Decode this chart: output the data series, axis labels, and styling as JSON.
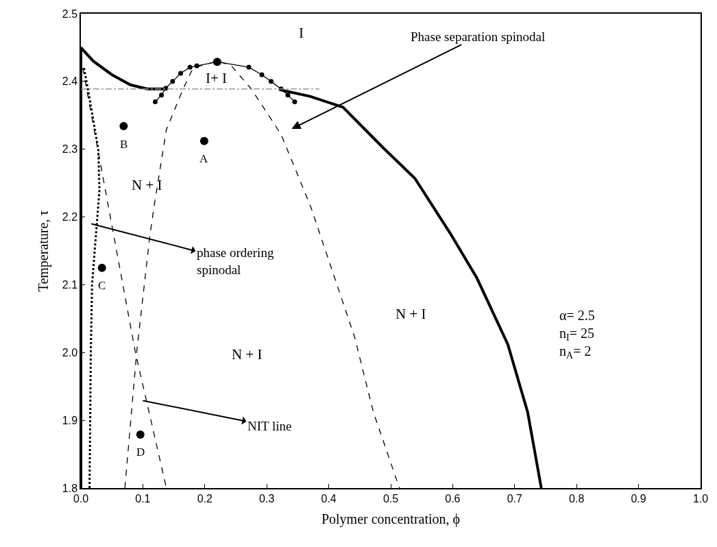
{
  "chart_data": {
    "type": "line",
    "xlabel": "Polymer concentration, ϕ",
    "ylabel": "Temperature, τ",
    "xlim": [
      0,
      1
    ],
    "ylim": [
      1.8,
      2.5
    ],
    "xticks": [
      {
        "value": 0,
        "label": "0.0"
      },
      0.1,
      0.2,
      0.3,
      0.4,
      0.5,
      0.6,
      0.7,
      0.8,
      0.9,
      {
        "value": 1,
        "label": "1.0"
      }
    ],
    "yticks": [
      1.8,
      1.9,
      {
        "value": 2,
        "label": "2.0"
      },
      2.1,
      2.2,
      2.3,
      2.4,
      2.5
    ],
    "grid": false,
    "series": [
      {
        "color": "#000000",
        "line_style": "solid",
        "marker": "none",
        "x": [
          0,
          0,
          0.02,
          0.05,
          0.08,
          0.107,
          0.138
        ],
        "values": [
          1.8,
          2.45,
          2.43,
          2.41,
          2.395,
          2.389,
          2.389
        ]
      },
      {
        "color": "#000000",
        "line_style": "solid",
        "marker": "none",
        "x": [
          0.325,
          0.37,
          0.423,
          0.488,
          0.539,
          0.596,
          0.639,
          0.689,
          0.721,
          0.743
        ],
        "values": [
          2.387,
          2.378,
          2.362,
          2.302,
          2.257,
          2.176,
          2.11,
          2.012,
          1.912,
          1.8
        ]
      },
      {
        "color": "#000000",
        "line_style": "dotted",
        "marker": "none",
        "x": [
          0.014,
          0.015,
          0.016,
          0.018,
          0.024,
          0.03,
          0.028,
          0.015,
          0.005
        ],
        "values": [
          1.8,
          1.9,
          2.0,
          2.1,
          2.17,
          2.24,
          2.3,
          2.37,
          2.42
        ]
      },
      {
        "color": "#000000",
        "line_style": "dashed",
        "marker": "none",
        "x": [
          0.003,
          0.088,
          0.138
        ],
        "values": [
          2.42,
          2.0,
          1.8
        ]
      },
      {
        "color": "#000000",
        "line_style": "dashed",
        "marker": "none",
        "x": [
          0.071,
          0.09,
          0.111,
          0.118,
          0.138,
          0.165,
          0.181,
          0.22,
          0.242,
          0.275,
          0.323,
          0.371,
          0.442,
          0.472,
          0.514
        ],
        "values": [
          1.8,
          2.0,
          2.17,
          2.215,
          2.329,
          2.389,
          2.42,
          2.43,
          2.424,
          2.389,
          2.322,
          2.215,
          2.022,
          1.912,
          1.8
        ]
      },
      {
        "color": "#000000",
        "line_style": "solid",
        "marker": "circle",
        "x": [
          0.12,
          0.13,
          0.137,
          0.148,
          0.161,
          0.176,
          0.187,
          0.22,
          0.271,
          0.292,
          0.307,
          0.323,
          0.334,
          0.345
        ],
        "values": [
          2.37,
          2.38,
          2.39,
          2.4,
          2.412,
          2.421,
          2.423,
          2.429,
          2.421,
          2.41,
          2.4,
          2.389,
          2.38,
          2.37
        ]
      },
      {
        "color": "#999999",
        "line_style": "dashdot",
        "marker": "none",
        "x": [
          0,
          0.385
        ],
        "values": [
          2.389,
          2.389
        ]
      },
      {
        "type": "scatter",
        "color": "#000000",
        "marker": "circle",
        "x": [
          0.22
        ],
        "values": [
          2.429
        ]
      },
      {
        "type": "scatter",
        "color": "#000000",
        "marker": "circle",
        "x": [
          0.199,
          0.069,
          0.034,
          0.096
        ],
        "values": [
          2.312,
          2.334,
          2.125,
          1.879
        ]
      }
    ],
    "annotations": [
      "Phase separation spinodal",
      "phase ordering\nspinodal",
      {
        "text": "NIT line",
        "x": 0.1,
        "y": 1.929
      },
      {
        "text": "A",
        "x": 0.199,
        "y": 2.312
      },
      {
        "text": "B",
        "x": 0.069,
        "y": 2.334
      },
      {
        "text": "C",
        "x": 0.034,
        "y": 2.125
      },
      {
        "text": "D",
        "x": 0.096,
        "y": 1.879
      },
      "I",
      "I+ I",
      "N + I",
      "N + I",
      "N + I",
      "α= 2.5\nn$_{I}$= 25\nn$_{A}$= 2"
    ]
  }
}
